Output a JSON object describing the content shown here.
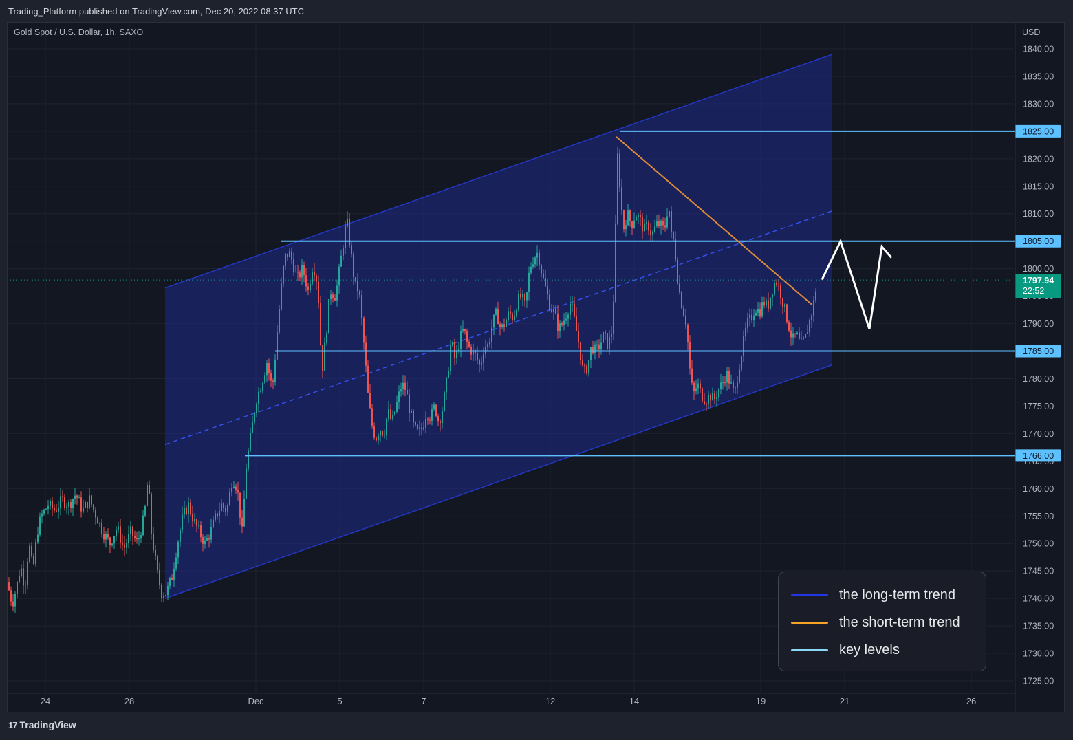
{
  "header": {
    "published_text": "Trading_Platform published on TradingView.com, Dec 20, 2022 08:37 UTC",
    "symbol_title": "Gold Spot / U.S. Dollar, 1h, SAXO"
  },
  "footer": {
    "logo_mark": "17",
    "logo_text": "TradingView"
  },
  "legend": {
    "items": [
      {
        "label": "the long-term trend",
        "color": "#2536e6"
      },
      {
        "label": "the short-term trend",
        "color": "#f7a325"
      },
      {
        "label": "key levels",
        "color": "#8ad8f5"
      }
    ]
  },
  "colors": {
    "background": "#131722",
    "up_candle": "#26a69a",
    "down_candle": "#ef5350",
    "channel_fill": "#1f2a8a",
    "channel_line": "#2236c4",
    "level_line": "#5ec1ff",
    "trend_line": "#e08b3a",
    "projection": "#ffffff",
    "price_badge": "#089981"
  },
  "chart_data": {
    "type": "candlestick",
    "title": "Gold Spot / U.S. Dollar, 1h, SAXO",
    "currency": "USD",
    "ylim": [
      1722,
      1842
    ],
    "y_ticks": [
      1840,
      1835,
      1830,
      1825,
      1820,
      1815,
      1810,
      1805,
      1800,
      1795,
      1790,
      1785,
      1780,
      1775,
      1770,
      1765,
      1760,
      1755,
      1750,
      1745,
      1740,
      1735,
      1730,
      1725
    ],
    "y_tick_labels": [
      "1840.00",
      "1835.00",
      "1830.00",
      "1825.00",
      "1820.00",
      "1815.00",
      "1810.00",
      "1805.00",
      "1800.00",
      "1795.00",
      "1790.00",
      "1785.00",
      "1780.00",
      "1775.00",
      "1770.00",
      "1765.00",
      "1760.00",
      "1755.00",
      "1750.00",
      "1745.00",
      "1740.00",
      "1735.00",
      "1730.00",
      "1725.00"
    ],
    "x_tick_labels": [
      "24",
      "28",
      "Dec",
      "5",
      "7",
      "12",
      "14",
      "19",
      "21",
      "26"
    ],
    "key_levels": [
      {
        "value": 1825,
        "label": "1825.00"
      },
      {
        "value": 1805,
        "label": "1805.00"
      },
      {
        "value": 1785,
        "label": "1785.00"
      },
      {
        "value": 1766,
        "label": "1766.00"
      }
    ],
    "current_price": {
      "value": 1797.94,
      "label": "1797.94",
      "countdown": "22:52"
    },
    "price_path": [
      [
        0,
        1743
      ],
      [
        6,
        1737
      ],
      [
        12,
        1742
      ],
      [
        18,
        1739
      ],
      [
        24,
        1742
      ],
      [
        30,
        1746
      ],
      [
        36,
        1742
      ],
      [
        42,
        1750
      ],
      [
        48,
        1745
      ],
      [
        54,
        1752
      ],
      [
        60,
        1755
      ],
      [
        70,
        1757
      ],
      [
        80,
        1756
      ],
      [
        90,
        1758
      ],
      [
        100,
        1757
      ],
      [
        110,
        1759
      ],
      [
        120,
        1756
      ],
      [
        130,
        1758
      ],
      [
        140,
        1755
      ],
      [
        150,
        1752
      ],
      [
        160,
        1750
      ],
      [
        170,
        1753
      ],
      [
        180,
        1749
      ],
      [
        190,
        1752
      ],
      [
        200,
        1750
      ],
      [
        210,
        1755
      ],
      [
        215,
        1762
      ],
      [
        220,
        1752
      ],
      [
        228,
        1745
      ],
      [
        235,
        1741
      ],
      [
        242,
        1741
      ],
      [
        250,
        1744
      ],
      [
        258,
        1750
      ],
      [
        266,
        1755
      ],
      [
        274,
        1757
      ],
      [
        282,
        1754
      ],
      [
        290,
        1752
      ],
      [
        298,
        1750
      ],
      [
        306,
        1752
      ],
      [
        314,
        1755
      ],
      [
        322,
        1757
      ],
      [
        330,
        1756
      ],
      [
        338,
        1762
      ],
      [
        345,
        1760
      ],
      [
        352,
        1752
      ],
      [
        358,
        1764
      ],
      [
        365,
        1770
      ],
      [
        372,
        1776
      ],
      [
        380,
        1779
      ],
      [
        388,
        1783
      ],
      [
        396,
        1778
      ],
      [
        404,
        1790
      ],
      [
        410,
        1798
      ],
      [
        414,
        1802
      ],
      [
        420,
        1803
      ],
      [
        426,
        1801
      ],
      [
        432,
        1798
      ],
      [
        440,
        1800
      ],
      [
        448,
        1796
      ],
      [
        455,
        1801
      ],
      [
        462,
        1797
      ],
      [
        468,
        1781
      ],
      [
        474,
        1788
      ],
      [
        480,
        1796
      ],
      [
        488,
        1795
      ],
      [
        496,
        1802
      ],
      [
        504,
        1809
      ],
      [
        510,
        1803
      ],
      [
        516,
        1797
      ],
      [
        522,
        1796
      ],
      [
        530,
        1785
      ],
      [
        535,
        1777
      ],
      [
        540,
        1772
      ],
      [
        546,
        1769
      ],
      [
        552,
        1771
      ],
      [
        558,
        1770
      ],
      [
        564,
        1774
      ],
      [
        570,
        1772
      ],
      [
        576,
        1775
      ],
      [
        584,
        1779
      ],
      [
        590,
        1778
      ],
      [
        596,
        1774
      ],
      [
        602,
        1771
      ],
      [
        608,
        1770
      ],
      [
        614,
        1771
      ],
      [
        620,
        1774
      ],
      [
        626,
        1773
      ],
      [
        632,
        1775
      ],
      [
        638,
        1772
      ],
      [
        644,
        1775
      ],
      [
        650,
        1780
      ],
      [
        656,
        1787
      ],
      [
        662,
        1783
      ],
      [
        668,
        1787
      ],
      [
        674,
        1789
      ],
      [
        680,
        1786
      ],
      [
        686,
        1785
      ],
      [
        692,
        1784
      ],
      [
        698,
        1782
      ],
      [
        704,
        1786
      ],
      [
        710,
        1786
      ],
      [
        716,
        1790
      ],
      [
        722,
        1792
      ],
      [
        728,
        1789
      ],
      [
        734,
        1790
      ],
      [
        740,
        1792
      ],
      [
        746,
        1791
      ],
      [
        752,
        1794
      ],
      [
        758,
        1795
      ],
      [
        764,
        1793
      ],
      [
        770,
        1800
      ],
      [
        776,
        1802
      ],
      [
        782,
        1803
      ],
      [
        788,
        1799
      ],
      [
        794,
        1796
      ],
      [
        800,
        1793
      ],
      [
        806,
        1792
      ],
      [
        812,
        1789
      ],
      [
        818,
        1790
      ],
      [
        824,
        1792
      ],
      [
        830,
        1794
      ],
      [
        836,
        1790
      ],
      [
        842,
        1786
      ],
      [
        848,
        1781
      ],
      [
        854,
        1782
      ],
      [
        860,
        1786
      ],
      [
        866,
        1785
      ],
      [
        872,
        1786
      ],
      [
        878,
        1788
      ],
      [
        884,
        1786
      ],
      [
        890,
        1789
      ],
      [
        894,
        1800
      ],
      [
        897,
        1822
      ],
      [
        902,
        1814
      ],
      [
        906,
        1807
      ],
      [
        912,
        1810
      ],
      [
        918,
        1808
      ],
      [
        924,
        1810
      ],
      [
        930,
        1809
      ],
      [
        936,
        1807
      ],
      [
        942,
        1808
      ],
      [
        948,
        1806
      ],
      [
        954,
        1808
      ],
      [
        960,
        1808
      ],
      [
        966,
        1807
      ],
      [
        972,
        1812
      ],
      [
        976,
        1806
      ],
      [
        980,
        1805
      ],
      [
        986,
        1797
      ],
      [
        992,
        1793
      ],
      [
        998,
        1790
      ],
      [
        1004,
        1780
      ],
      [
        1008,
        1777
      ],
      [
        1014,
        1779
      ],
      [
        1020,
        1777
      ],
      [
        1026,
        1776
      ],
      [
        1032,
        1777
      ],
      [
        1038,
        1776
      ],
      [
        1044,
        1778
      ],
      [
        1050,
        1779
      ],
      [
        1056,
        1781
      ],
      [
        1062,
        1779
      ],
      [
        1068,
        1777
      ],
      [
        1074,
        1782
      ],
      [
        1080,
        1786
      ],
      [
        1086,
        1790
      ],
      [
        1092,
        1791
      ],
      [
        1098,
        1793
      ],
      [
        1104,
        1792
      ],
      [
        1110,
        1794
      ],
      [
        1116,
        1793
      ],
      [
        1122,
        1796
      ],
      [
        1128,
        1798
      ],
      [
        1134,
        1796
      ],
      [
        1140,
        1793
      ],
      [
        1146,
        1790
      ],
      [
        1152,
        1787
      ],
      [
        1158,
        1788
      ],
      [
        1164,
        1786
      ],
      [
        1170,
        1787
      ],
      [
        1176,
        1790
      ],
      [
        1182,
        1793
      ],
      [
        1188,
        1797.94
      ]
    ],
    "long_term_channel": {
      "upper": [
        [
          240,
          1796.5
        ],
        [
          1210,
          1839
        ]
      ],
      "lower": [
        [
          240,
          1740
        ],
        [
          1210,
          1782.5
        ]
      ],
      "mid": [
        [
          240,
          1768
        ],
        [
          1210,
          1810.5
        ]
      ]
    },
    "short_term_trend": [
      [
        896,
        1824
      ],
      [
        1180,
        1793.5
      ]
    ],
    "projection": [
      [
        1195,
        1798
      ],
      [
        1222,
        1805
      ],
      [
        1264,
        1789
      ],
      [
        1282,
        1804
      ],
      [
        1296,
        1802
      ]
    ]
  }
}
